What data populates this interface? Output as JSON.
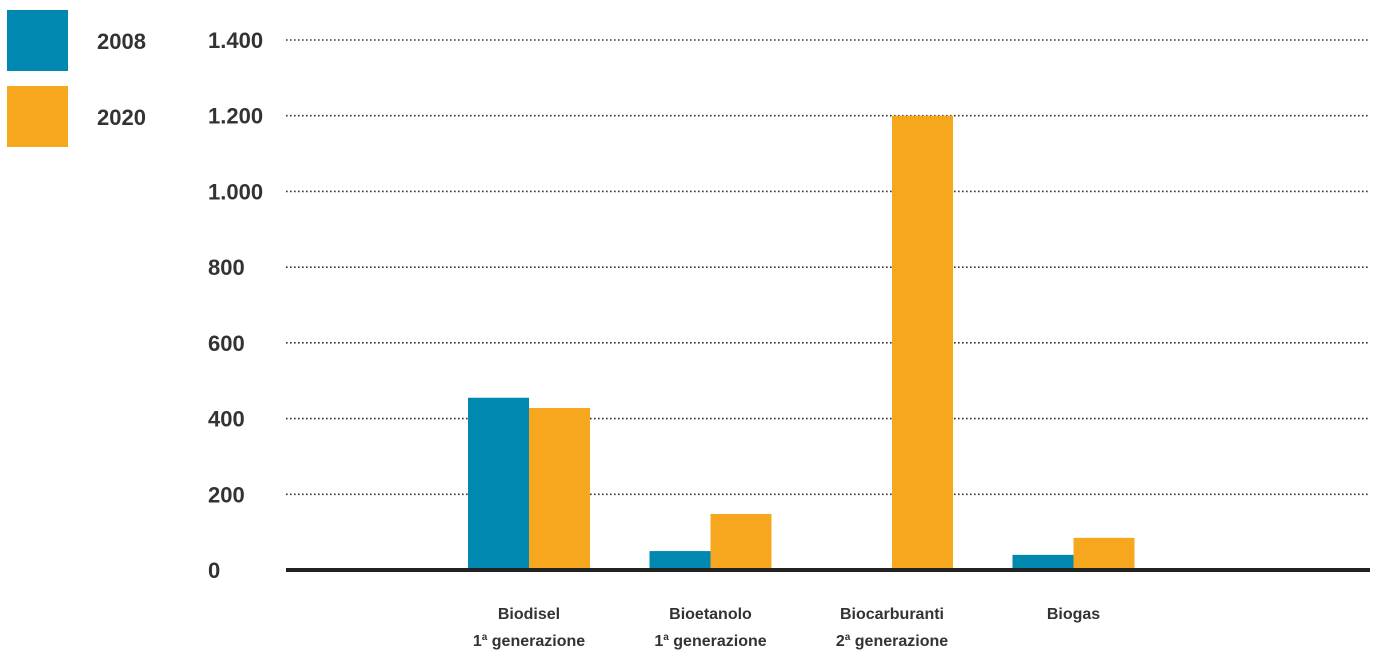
{
  "chart_data": {
    "type": "bar",
    "title": "",
    "xlabel": "",
    "ylabel": "",
    "ylim": [
      0,
      1400
    ],
    "yticks": [
      0,
      200,
      400,
      600,
      800,
      1000,
      1200,
      1400
    ],
    "ytick_labels": [
      "0",
      "200",
      "400",
      "600",
      "800",
      "1.000",
      "1.200",
      "1.400"
    ],
    "grid": "horizontal-dotted",
    "legend_position": "top-left",
    "categories": [
      {
        "line1": "Biodisel",
        "line2_num": "1",
        "line2_sup": "a",
        "line2_rest": " generazione"
      },
      {
        "line1": "Bioetanolo",
        "line2_num": "1",
        "line2_sup": "a",
        "line2_rest": " generazione"
      },
      {
        "line1": "Biocarburanti",
        "line2_num": "2",
        "line2_sup": "a",
        "line2_rest": " generazione"
      },
      {
        "line1": "Biogas",
        "line2_num": "",
        "line2_sup": "",
        "line2_rest": ""
      }
    ],
    "series": [
      {
        "name": "2008",
        "color": "#0088b0",
        "values": [
          455,
          50,
          0,
          40
        ]
      },
      {
        "name": "2020",
        "color": "#f6a71e",
        "values": [
          428,
          148,
          1200,
          85
        ]
      }
    ]
  }
}
